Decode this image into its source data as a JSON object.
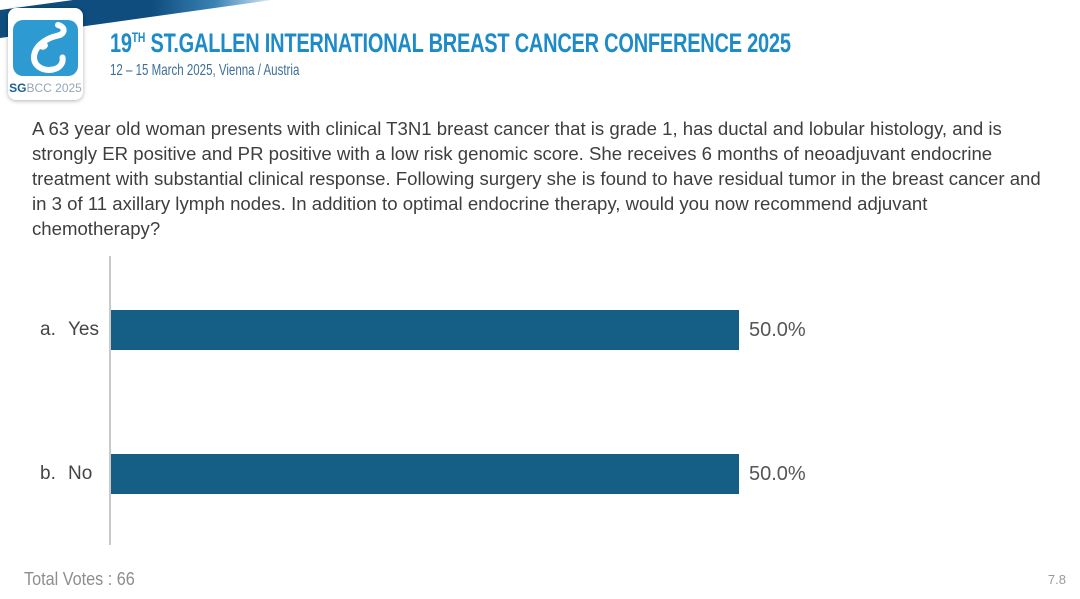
{
  "header": {
    "banner_color": "#0e4d7d",
    "logo": {
      "icon": "breast-drop-icon",
      "square_color": "#2e9ad2",
      "caption_bold": "SG",
      "caption_rest": "BCC 2025"
    },
    "title_num": "19",
    "title_sup": "TH",
    "title_rest": " ST.GALLEN INTERNATIONAL BREAST CANCER CONFERENCE 2025",
    "title_color": "#1e8bc9",
    "subtitle": "12 – 15 March 2025, Vienna / Austria"
  },
  "question": "A 63 year old woman presents with clinical T3N1 breast cancer that is grade 1, has ductal and lobular histology, and is strongly ER positive and PR positive with a low risk genomic score. She receives 6 months of neoadjuvant endocrine treatment with substantial clinical response. Following surgery she is found to have residual tumor in the breast cancer and in 3 of 11 axillary lymph nodes. In addition to optimal endocrine therapy, would you now recommend adjuvant chemotherapy?",
  "chart_data": {
    "type": "bar",
    "orientation": "horizontal",
    "option_letters": [
      "a.",
      "b."
    ],
    "categories": [
      "Yes",
      "No"
    ],
    "values": [
      50.0,
      50.0
    ],
    "value_labels": [
      "50.0%",
      "50.0%"
    ],
    "xlim": [
      0,
      100
    ],
    "bar_color": "#155e86",
    "axis_color": "#c9c9c9",
    "grid": false,
    "legend": false,
    "title": "",
    "xlabel": "",
    "ylabel": ""
  },
  "footer": {
    "total_votes": "Total Votes : 66",
    "slide_number": "7.8"
  }
}
